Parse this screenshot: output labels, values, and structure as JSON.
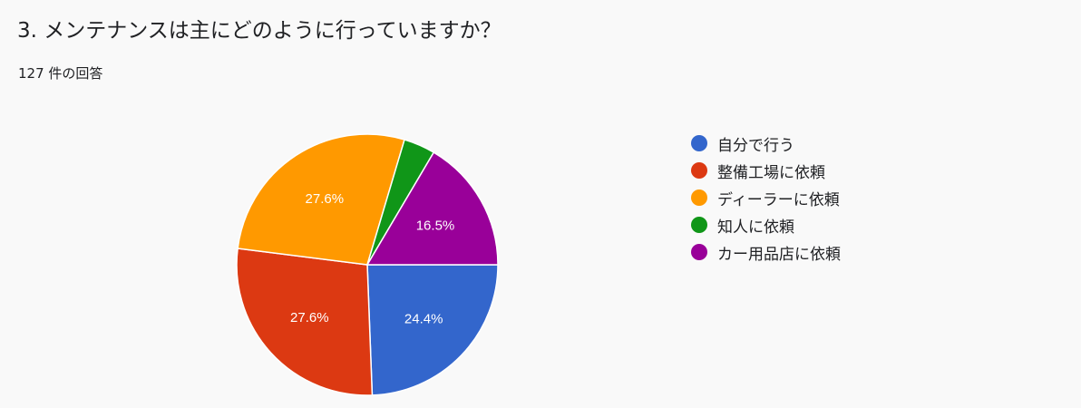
{
  "question": {
    "title": "3. メンテナンスは主にどのように行っていますか？",
    "response_count": "127 件の回答"
  },
  "chart_data": {
    "type": "pie",
    "title": "3. メンテナンスは主にどのように行っていますか？",
    "categories": [
      "自分で行う",
      "整備工場に依頼",
      "ディーラーに依頼",
      "知人に依頼",
      "カー用品店に依頼"
    ],
    "values": [
      24.4,
      27.6,
      27.6,
      3.9,
      16.5
    ],
    "labels": [
      "24.4%",
      "27.6%",
      "27.6%",
      "",
      "16.5%"
    ],
    "colors": [
      "#3366cc",
      "#dc3912",
      "#ff9900",
      "#109618",
      "#990099"
    ],
    "legend": "right",
    "start": "3 o'clock, clockwise"
  }
}
